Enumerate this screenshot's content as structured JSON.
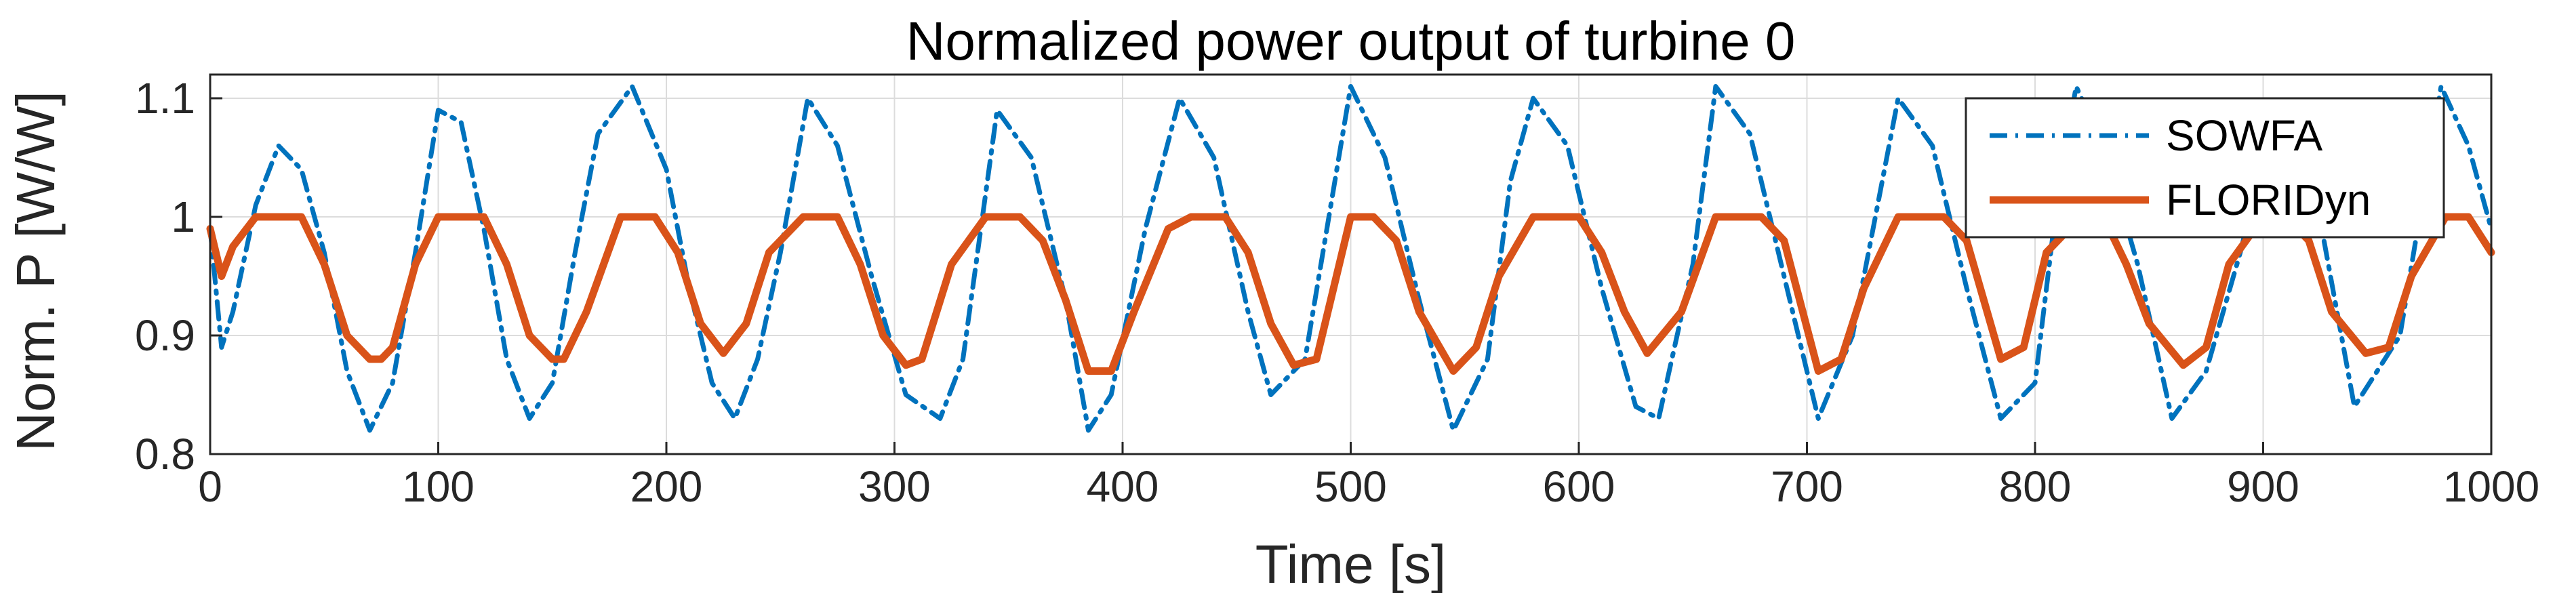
{
  "chart_data": {
    "type": "line",
    "title": "Normalized power output of turbine 0",
    "xlabel": "Time [s]",
    "ylabel": "Norm. P [W/W]",
    "xlim": [
      0,
      1000
    ],
    "ylim": [
      0.8,
      1.12
    ],
    "xticks": [
      0,
      100,
      200,
      300,
      400,
      500,
      600,
      700,
      800,
      900,
      1000
    ],
    "xtick_labels": [
      "0",
      "100",
      "200",
      "300",
      "400",
      "500",
      "600",
      "700",
      "800",
      "900",
      "1000"
    ],
    "yticks": [
      0.8,
      0.9,
      1.0,
      1.1
    ],
    "ytick_labels": [
      "0.8",
      "0.9",
      "1",
      "1.1"
    ],
    "grid": true,
    "legend_position": "top-right",
    "series": [
      {
        "name": "SOWFA",
        "color": "#0072BD",
        "style": "dash-dot",
        "x": [
          0,
          5,
          10,
          20,
          30,
          40,
          50,
          60,
          70,
          80,
          90,
          100,
          110,
          120,
          130,
          140,
          150,
          160,
          170,
          185,
          200,
          210,
          220,
          230,
          240,
          250,
          262,
          275,
          290,
          305,
          320,
          330,
          345,
          360,
          375,
          385,
          395,
          410,
          425,
          440,
          455,
          465,
          480,
          500,
          515,
          530,
          545,
          560,
          570,
          580,
          595,
          610,
          625,
          635,
          650,
          660,
          675,
          690,
          705,
          720,
          740,
          755,
          770,
          785,
          800,
          810,
          818,
          830,
          845,
          860,
          875,
          890,
          905,
          920,
          940,
          960,
          978,
          990,
          1000
        ],
        "y": [
          0.99,
          0.89,
          0.92,
          1.01,
          1.06,
          1.04,
          0.97,
          0.87,
          0.82,
          0.86,
          0.97,
          1.09,
          1.08,
          0.99,
          0.88,
          0.83,
          0.86,
          0.97,
          1.07,
          1.11,
          1.04,
          0.94,
          0.86,
          0.83,
          0.88,
          0.97,
          1.1,
          1.06,
          0.95,
          0.85,
          0.83,
          0.88,
          1.09,
          1.05,
          0.93,
          0.82,
          0.85,
          0.99,
          1.1,
          1.05,
          0.92,
          0.85,
          0.88,
          1.11,
          1.05,
          0.93,
          0.82,
          0.88,
          1.03,
          1.1,
          1.06,
          0.94,
          0.84,
          0.83,
          0.96,
          1.11,
          1.07,
          0.95,
          0.83,
          0.9,
          1.1,
          1.06,
          0.94,
          0.83,
          0.86,
          1.02,
          1.11,
          1.06,
          0.96,
          0.83,
          0.87,
          0.97,
          1.09,
          1.05,
          0.84,
          0.9,
          1.11,
          1.06,
          0.99
        ]
      },
      {
        "name": "FLORIDyn",
        "color": "#D95319",
        "style": "solid",
        "x": [
          0,
          5,
          10,
          20,
          30,
          40,
          50,
          60,
          70,
          75,
          80,
          90,
          100,
          110,
          120,
          130,
          140,
          150,
          155,
          165,
          180,
          195,
          205,
          215,
          225,
          235,
          245,
          260,
          275,
          285,
          295,
          305,
          312,
          325,
          340,
          355,
          365,
          375,
          385,
          395,
          405,
          420,
          430,
          445,
          455,
          465,
          475,
          485,
          500,
          510,
          520,
          530,
          545,
          555,
          565,
          580,
          590,
          600,
          610,
          620,
          630,
          645,
          660,
          670,
          680,
          690,
          705,
          715,
          725,
          740,
          750,
          760,
          770,
          785,
          795,
          805,
          820,
          830,
          840,
          850,
          865,
          875,
          885,
          900,
          910,
          920,
          930,
          945,
          955,
          965,
          980,
          990,
          1000
        ],
        "y": [
          0.99,
          0.95,
          0.975,
          1.0,
          1.0,
          1.0,
          0.96,
          0.9,
          0.88,
          0.88,
          0.89,
          0.96,
          1.0,
          1.0,
          1.0,
          0.96,
          0.9,
          0.88,
          0.88,
          0.92,
          1.0,
          1.0,
          0.97,
          0.91,
          0.885,
          0.91,
          0.97,
          1.0,
          1.0,
          0.96,
          0.9,
          0.875,
          0.88,
          0.96,
          1.0,
          1.0,
          0.98,
          0.93,
          0.87,
          0.87,
          0.92,
          0.99,
          1.0,
          1.0,
          0.97,
          0.91,
          0.875,
          0.88,
          1.0,
          1.0,
          0.98,
          0.92,
          0.87,
          0.89,
          0.95,
          1.0,
          1.0,
          1.0,
          0.97,
          0.92,
          0.885,
          0.92,
          1.0,
          1.0,
          1.0,
          0.98,
          0.87,
          0.88,
          0.94,
          1.0,
          1.0,
          1.0,
          0.98,
          0.88,
          0.89,
          0.97,
          1.0,
          1.0,
          0.96,
          0.91,
          0.875,
          0.89,
          0.96,
          1.0,
          1.0,
          0.98,
          0.92,
          0.885,
          0.89,
          0.95,
          1.0,
          1.0,
          0.97
        ]
      }
    ]
  }
}
